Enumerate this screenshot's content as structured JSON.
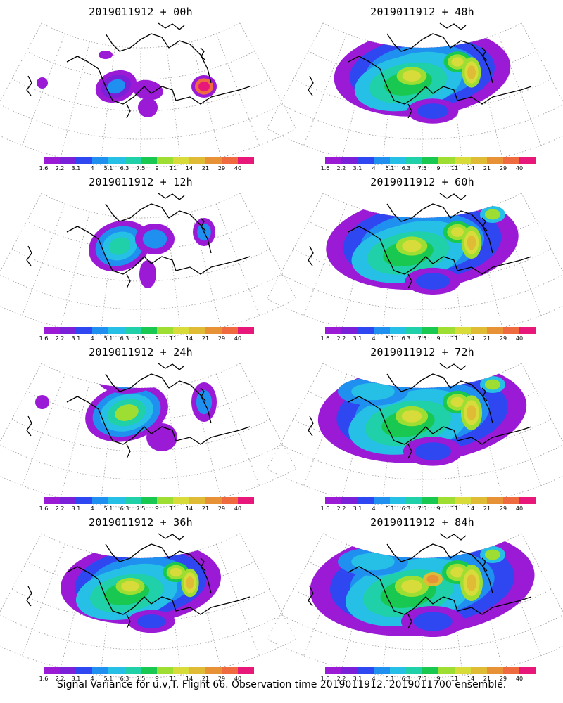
{
  "colorbar": {
    "colors": [
      "#9a1ad6",
      "#7a20d8",
      "#2e47f0",
      "#1f8ff0",
      "#26bfe6",
      "#1fd0a8",
      "#19c850",
      "#9ede32",
      "#d8dc3a",
      "#e0bc36",
      "#e89238",
      "#f06a40",
      "#e8187a"
    ],
    "labels": [
      "1.6",
      "2.2",
      "3.1",
      "4",
      "5.1",
      "6.3",
      "7.5",
      "9",
      "11",
      "14",
      "21",
      "29",
      "40"
    ]
  },
  "panels": [
    {
      "title": "2019011912 + 00h",
      "lead_hours": 0
    },
    {
      "title": "2019011912 + 48h",
      "lead_hours": 48
    },
    {
      "title": "2019011912 + 12h",
      "lead_hours": 12
    },
    {
      "title": "2019011912 + 60h",
      "lead_hours": 60
    },
    {
      "title": "2019011912 + 24h",
      "lead_hours": 24
    },
    {
      "title": "2019011912 + 72h",
      "lead_hours": 72
    },
    {
      "title": "2019011912 + 36h",
      "lead_hours": 36
    },
    {
      "title": "2019011912 + 84h",
      "lead_hours": 84
    }
  ],
  "caption": "Signal Variance for u,v,T. Flight 66. Observation time 2019011912. 2019011700 ensemble."
}
